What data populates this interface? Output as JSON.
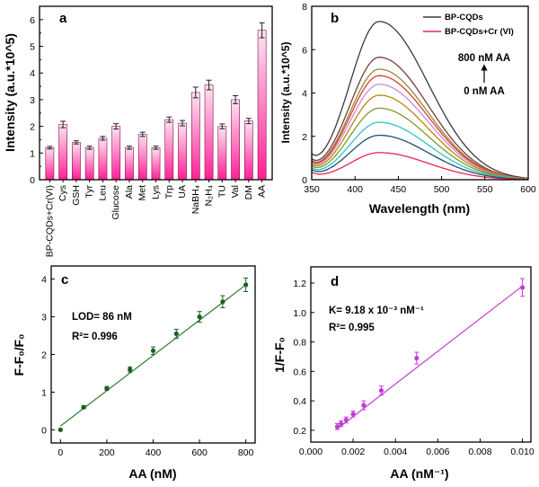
{
  "chart_data": [
    {
      "panel": "a",
      "type": "bar",
      "ylabel": "Intensity (a.u.*10^5)",
      "ylim": [
        0,
        6.5
      ],
      "yticks": [
        0,
        1,
        2,
        3,
        4,
        5,
        6
      ],
      "categories": [
        "BP-CQDs+Cr(VI)",
        "Cys",
        "GSH",
        "Tyr",
        "Leu",
        "Glucose",
        "Ala",
        "Met",
        "Lys",
        "Trp",
        "UA",
        "NaBH₄",
        "N₂H₄",
        "TU",
        "Val",
        "DM",
        "AA"
      ],
      "values": [
        1.2,
        2.07,
        1.4,
        1.2,
        1.55,
        2.0,
        1.2,
        1.7,
        1.2,
        2.25,
        2.12,
        3.27,
        3.55,
        2.0,
        3.0,
        2.2,
        5.6
      ],
      "errors": [
        0.05,
        0.12,
        0.06,
        0.06,
        0.07,
        0.1,
        0.06,
        0.08,
        0.06,
        0.1,
        0.1,
        0.2,
        0.18,
        0.09,
        0.15,
        0.1,
        0.28
      ],
      "colors": {
        "gradient_top": "#fbe6f1",
        "gradient_bottom": "#ff1f96",
        "edge": "#8a0a52"
      }
    },
    {
      "panel": "b",
      "type": "line",
      "xlabel": "Wavelength (nm)",
      "ylabel": "Intensity (a.u.*10^5)",
      "xlim": [
        350,
        600
      ],
      "ylim": [
        0,
        8
      ],
      "xticks": [
        350,
        400,
        450,
        500,
        550,
        600
      ],
      "yticks": [
        0,
        2,
        4,
        6,
        8
      ],
      "peak_wavelength": 428,
      "legend": [
        {
          "name": "BP-CQDs",
          "color": "#3a3a3a"
        },
        {
          "name": "BP-CQDs+Cr (VI)",
          "color": "#e8245a"
        }
      ],
      "annotation_top": "800 nM AA",
      "annotation_bottom": "0 nM AA",
      "series": [
        {
          "name": "BP-CQDs",
          "peak": 7.3,
          "color": "#3a3a3a"
        },
        {
          "name": "AA 800 nM",
          "peak": 5.65,
          "color": "#7a3b3b"
        },
        {
          "name": "AA 700 nM",
          "peak": 5.1,
          "color": "#8b8b3a"
        },
        {
          "name": "AA 600 nM",
          "peak": 4.8,
          "color": "#e03a2a"
        },
        {
          "name": "AA 500 nM",
          "peak": 4.4,
          "color": "#c98ad8"
        },
        {
          "name": "AA 400 nM",
          "peak": 3.9,
          "color": "#b8860b"
        },
        {
          "name": "AA 300 nM",
          "peak": 3.3,
          "color": "#7b9a2a"
        },
        {
          "name": "AA 200 nM",
          "peak": 2.65,
          "color": "#2ec4c4"
        },
        {
          "name": "AA 100 nM",
          "peak": 2.05,
          "color": "#1f4e79"
        },
        {
          "name": "BP-CQDs+Cr (VI)",
          "peak": 1.25,
          "color": "#e8245a"
        }
      ]
    },
    {
      "panel": "c",
      "type": "scatter",
      "xlabel": "AA (nM)",
      "ylabel": "F-F₀/F₀",
      "xlim": [
        -40,
        840
      ],
      "ylim": [
        -0.35,
        4.35
      ],
      "xticks": [
        0,
        200,
        400,
        600,
        800
      ],
      "yticks": [
        0,
        1,
        2,
        3,
        4
      ],
      "x": [
        0,
        100,
        200,
        300,
        400,
        500,
        600,
        700,
        800
      ],
      "y": [
        0.0,
        0.6,
        1.1,
        1.6,
        2.1,
        2.55,
        3.0,
        3.4,
        3.85
      ],
      "errors": [
        0.02,
        0.04,
        0.05,
        0.07,
        0.1,
        0.12,
        0.14,
        0.16,
        0.18
      ],
      "fit": {
        "x": [
          0,
          800
        ],
        "y": [
          0.1,
          3.85
        ]
      },
      "annotations": [
        "LOD= 86 nM",
        "R²= 0.996"
      ],
      "colors": {
        "marker": "#1b5e20",
        "line": "#2e7d32"
      }
    },
    {
      "panel": "d",
      "type": "scatter",
      "xlabel": "AA (nM⁻¹)",
      "ylabel": "1/F-F₀",
      "xlim": [
        0.0,
        0.0104
      ],
      "ylim": [
        0.12,
        1.31
      ],
      "xticks": [
        "0.000",
        "0.002",
        "0.004",
        "0.006",
        "0.008",
        "0.010"
      ],
      "yticks": [
        "0.2",
        "0.4",
        "0.6",
        "0.8",
        "1.0",
        "1.2"
      ],
      "x": [
        0.00125,
        0.00143,
        0.00167,
        0.002,
        0.0025,
        0.00333,
        0.005,
        0.01
      ],
      "y": [
        0.225,
        0.245,
        0.27,
        0.31,
        0.37,
        0.47,
        0.69,
        1.17
      ],
      "errors": [
        0.02,
        0.02,
        0.02,
        0.02,
        0.03,
        0.03,
        0.04,
        0.06
      ],
      "fit": {
        "x": [
          0.00125,
          0.01
        ],
        "y": [
          0.21,
          1.18
        ]
      },
      "annotations": [
        "K= 9.18 x 10⁻³ nM⁻¹",
        "R²= 0.995"
      ],
      "colors": {
        "marker": "#c23bd4",
        "line": "#c23bd4"
      }
    }
  ]
}
